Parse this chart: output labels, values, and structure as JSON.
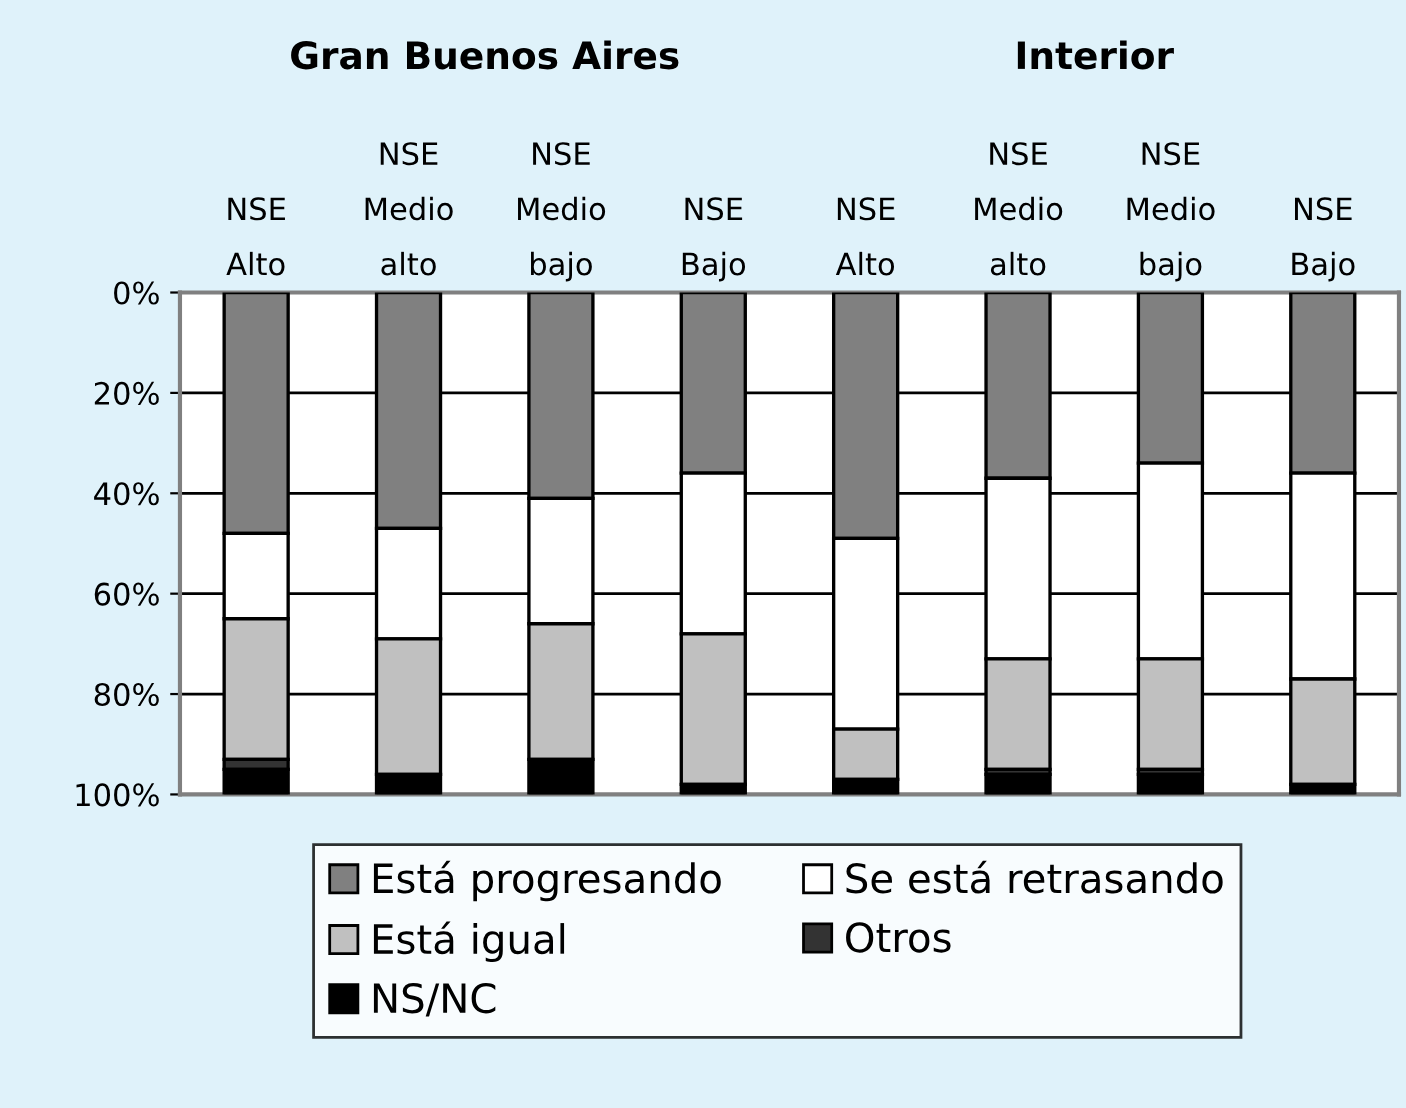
{
  "chart_data": {
    "type": "bar",
    "stacked": true,
    "categories": [
      "NSE\nAlto",
      "NSE\nMedio\nalto",
      "NSE\nMedio\nbajo",
      "NSE\nBajo",
      "NSE\nAlto",
      "NSE\nMedio\nalto",
      "NSE\nMedio\nbajo",
      "NSE\nBajo"
    ],
    "series": [
      {
        "name": "Está progresando",
        "color": "#808080",
        "values": [
          48,
          47,
          41,
          36,
          49,
          37,
          34,
          36
        ]
      },
      {
        "name": "Se está retrasando",
        "color": "#ffffff",
        "values": [
          17,
          22,
          25,
          32,
          38,
          36,
          39,
          41
        ]
      },
      {
        "name": "Está igual",
        "color": "#c0c0c0",
        "values": [
          28,
          27,
          27,
          30,
          10,
          22,
          22,
          21
        ]
      },
      {
        "name": "Otros",
        "color": "#333333",
        "values": [
          2,
          0,
          0,
          0,
          0,
          1,
          1,
          0
        ]
      },
      {
        "name": "NS/NC",
        "color": "#000000",
        "values": [
          5,
          4,
          7,
          2,
          3,
          4,
          4,
          2
        ]
      }
    ],
    "ylim": [
      100,
      0
    ],
    "yticks": [
      {
        "value": 0,
        "label": "0%"
      },
      {
        "value": 20,
        "label": "20%"
      },
      {
        "value": 40,
        "label": "40%"
      },
      {
        "value": 60,
        "label": "60%"
      },
      {
        "value": 80,
        "label": "80%"
      },
      {
        "value": 100,
        "label": "100%"
      }
    ],
    "grid": "y",
    "legend": "bottom",
    "annotations": [
      "Gran Buenos Aires",
      "Interior"
    ]
  }
}
